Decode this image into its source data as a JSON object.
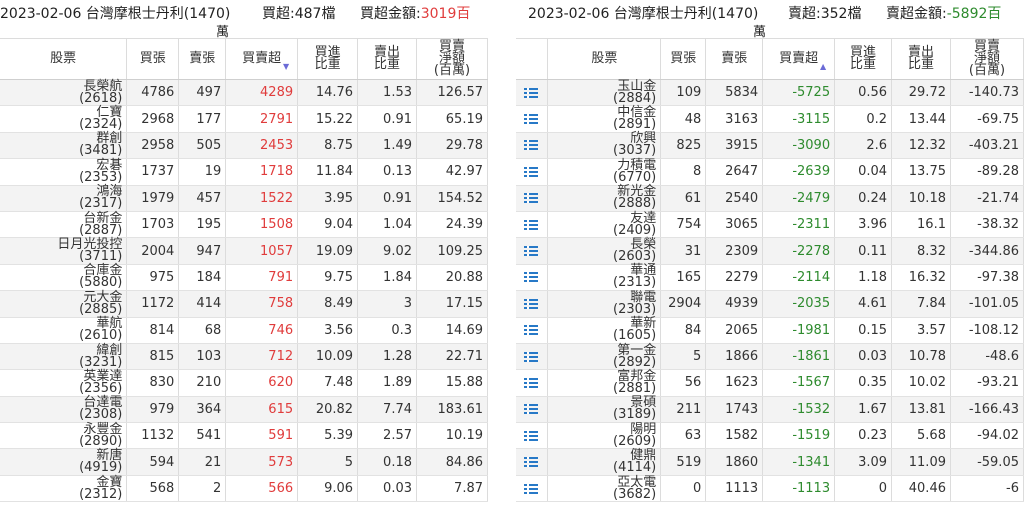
{
  "left": {
    "date_title": "2023-02-06 台灣摩根士丹利(1470)",
    "title_wrap": "萬",
    "count_label": "買超:487檔",
    "amount_label": "買超金額:",
    "amount_value": "3019百",
    "headers": [
      "股票",
      "買張",
      "賣張",
      "買賣超",
      "買進\n比重",
      "賣出\n比重",
      "買賣\n淨額\n(百萬)"
    ],
    "sort_arrow": "▼",
    "rows": [
      {
        "name": "長榮航",
        "code": "(2618)",
        "buy": "4786",
        "sell": "497",
        "net": "4289",
        "buy_pct": "14.76",
        "sell_pct": "1.53",
        "amt": "126.57"
      },
      {
        "name": "仁寶",
        "code": "(2324)",
        "buy": "2968",
        "sell": "177",
        "net": "2791",
        "buy_pct": "15.22",
        "sell_pct": "0.91",
        "amt": "65.19"
      },
      {
        "name": "群創",
        "code": "(3481)",
        "buy": "2958",
        "sell": "505",
        "net": "2453",
        "buy_pct": "8.75",
        "sell_pct": "1.49",
        "amt": "29.78"
      },
      {
        "name": "宏碁",
        "code": "(2353)",
        "buy": "1737",
        "sell": "19",
        "net": "1718",
        "buy_pct": "11.84",
        "sell_pct": "0.13",
        "amt": "42.97"
      },
      {
        "name": "鴻海",
        "code": "(2317)",
        "buy": "1979",
        "sell": "457",
        "net": "1522",
        "buy_pct": "3.95",
        "sell_pct": "0.91",
        "amt": "154.52"
      },
      {
        "name": "台新金",
        "code": "(2887)",
        "buy": "1703",
        "sell": "195",
        "net": "1508",
        "buy_pct": "9.04",
        "sell_pct": "1.04",
        "amt": "24.39"
      },
      {
        "name": "日月光投控",
        "code": "(3711)",
        "buy": "2004",
        "sell": "947",
        "net": "1057",
        "buy_pct": "19.09",
        "sell_pct": "9.02",
        "amt": "109.25"
      },
      {
        "name": "合庫金",
        "code": "(5880)",
        "buy": "975",
        "sell": "184",
        "net": "791",
        "buy_pct": "9.75",
        "sell_pct": "1.84",
        "amt": "20.88"
      },
      {
        "name": "元大金",
        "code": "(2885)",
        "buy": "1172",
        "sell": "414",
        "net": "758",
        "buy_pct": "8.49",
        "sell_pct": "3",
        "amt": "17.15"
      },
      {
        "name": "華航",
        "code": "(2610)",
        "buy": "814",
        "sell": "68",
        "net": "746",
        "buy_pct": "3.56",
        "sell_pct": "0.3",
        "amt": "14.69"
      },
      {
        "name": "緯創",
        "code": "(3231)",
        "buy": "815",
        "sell": "103",
        "net": "712",
        "buy_pct": "10.09",
        "sell_pct": "1.28",
        "amt": "22.71"
      },
      {
        "name": "英業達",
        "code": "(2356)",
        "buy": "830",
        "sell": "210",
        "net": "620",
        "buy_pct": "7.48",
        "sell_pct": "1.89",
        "amt": "15.88"
      },
      {
        "name": "台達電",
        "code": "(2308)",
        "buy": "979",
        "sell": "364",
        "net": "615",
        "buy_pct": "20.82",
        "sell_pct": "7.74",
        "amt": "183.61"
      },
      {
        "name": "永豐金",
        "code": "(2890)",
        "buy": "1132",
        "sell": "541",
        "net": "591",
        "buy_pct": "5.39",
        "sell_pct": "2.57",
        "amt": "10.19"
      },
      {
        "name": "新唐",
        "code": "(4919)",
        "buy": "594",
        "sell": "21",
        "net": "573",
        "buy_pct": "5",
        "sell_pct": "0.18",
        "amt": "84.86"
      },
      {
        "name": "金寶",
        "code": "(2312)",
        "buy": "568",
        "sell": "2",
        "net": "566",
        "buy_pct": "9.06",
        "sell_pct": "0.03",
        "amt": "7.87"
      }
    ]
  },
  "right": {
    "date_title": "2023-02-06 台灣摩根士丹利(1470)",
    "title_wrap": "萬",
    "count_label": "賣超:352檔",
    "amount_label": "賣超金額:",
    "amount_value": "-5892百",
    "headers": [
      "",
      "股票",
      "買張",
      "賣張",
      "買賣超",
      "買進\n比重",
      "賣出\n比重",
      "買賣\n淨額\n(百萬)"
    ],
    "sort_arrow": "▲",
    "icon": "list-icon",
    "rows": [
      {
        "name": "玉山金",
        "code": "(2884)",
        "buy": "109",
        "sell": "5834",
        "net": "-5725",
        "buy_pct": "0.56",
        "sell_pct": "29.72",
        "amt": "-140.73"
      },
      {
        "name": "中信金",
        "code": "(2891)",
        "buy": "48",
        "sell": "3163",
        "net": "-3115",
        "buy_pct": "0.2",
        "sell_pct": "13.44",
        "amt": "-69.75"
      },
      {
        "name": "欣興",
        "code": "(3037)",
        "buy": "825",
        "sell": "3915",
        "net": "-3090",
        "buy_pct": "2.6",
        "sell_pct": "12.32",
        "amt": "-403.21"
      },
      {
        "name": "力積電",
        "code": "(6770)",
        "buy": "8",
        "sell": "2647",
        "net": "-2639",
        "buy_pct": "0.04",
        "sell_pct": "13.75",
        "amt": "-89.28"
      },
      {
        "name": "新光金",
        "code": "(2888)",
        "buy": "61",
        "sell": "2540",
        "net": "-2479",
        "buy_pct": "0.24",
        "sell_pct": "10.18",
        "amt": "-21.74"
      },
      {
        "name": "友達",
        "code": "(2409)",
        "buy": "754",
        "sell": "3065",
        "net": "-2311",
        "buy_pct": "3.96",
        "sell_pct": "16.1",
        "amt": "-38.32"
      },
      {
        "name": "長榮",
        "code": "(2603)",
        "buy": "31",
        "sell": "2309",
        "net": "-2278",
        "buy_pct": "0.11",
        "sell_pct": "8.32",
        "amt": "-344.86"
      },
      {
        "name": "華通",
        "code": "(2313)",
        "buy": "165",
        "sell": "2279",
        "net": "-2114",
        "buy_pct": "1.18",
        "sell_pct": "16.32",
        "amt": "-97.38"
      },
      {
        "name": "聯電",
        "code": "(2303)",
        "buy": "2904",
        "sell": "4939",
        "net": "-2035",
        "buy_pct": "4.61",
        "sell_pct": "7.84",
        "amt": "-101.05"
      },
      {
        "name": "華新",
        "code": "(1605)",
        "buy": "84",
        "sell": "2065",
        "net": "-1981",
        "buy_pct": "0.15",
        "sell_pct": "3.57",
        "amt": "-108.12"
      },
      {
        "name": "第一金",
        "code": "(2892)",
        "buy": "5",
        "sell": "1866",
        "net": "-1861",
        "buy_pct": "0.03",
        "sell_pct": "10.78",
        "amt": "-48.6"
      },
      {
        "name": "富邦金",
        "code": "(2881)",
        "buy": "56",
        "sell": "1623",
        "net": "-1567",
        "buy_pct": "0.35",
        "sell_pct": "10.02",
        "amt": "-93.21"
      },
      {
        "name": "景碩",
        "code": "(3189)",
        "buy": "211",
        "sell": "1743",
        "net": "-1532",
        "buy_pct": "1.67",
        "sell_pct": "13.81",
        "amt": "-166.43"
      },
      {
        "name": "陽明",
        "code": "(2609)",
        "buy": "63",
        "sell": "1582",
        "net": "-1519",
        "buy_pct": "0.23",
        "sell_pct": "5.68",
        "amt": "-94.02"
      },
      {
        "name": "健鼎",
        "code": "(4114)",
        "buy": "519",
        "sell": "1860",
        "net": "-1341",
        "buy_pct": "3.09",
        "sell_pct": "11.09",
        "amt": "-59.05"
      },
      {
        "name": "亞太電",
        "code": "(3682)",
        "buy": "0",
        "sell": "1113",
        "net": "-1113",
        "buy_pct": "0",
        "sell_pct": "40.46",
        "amt": "-6"
      }
    ]
  },
  "colors": {
    "positive": "#e03c3c",
    "negative": "#2e8b2e",
    "icon": "#2779c7"
  }
}
